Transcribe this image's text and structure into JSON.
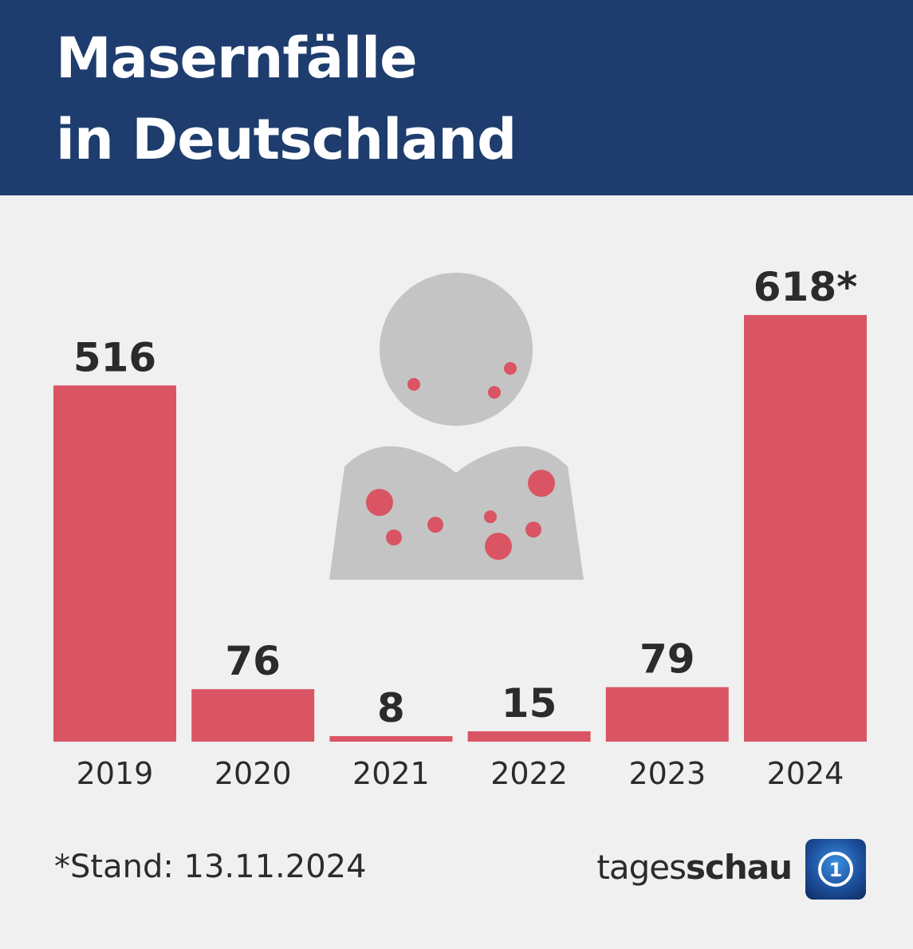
{
  "header": {
    "title_line1": "Masernfälle",
    "title_line2": "in Deutschland",
    "background": "#1e3d6e"
  },
  "chart_data": {
    "type": "bar",
    "title": "Masernfälle in Deutschland",
    "categories": [
      "2019",
      "2020",
      "2021",
      "2022",
      "2023",
      "2024"
    ],
    "values": [
      516,
      76,
      8,
      15,
      79,
      618
    ],
    "value_labels": [
      "516",
      "76",
      "8",
      "15",
      "79",
      "618*"
    ],
    "bar_color": "#d95563",
    "grid": false,
    "legend": "none"
  },
  "illustration": {
    "icon": "person-with-measles-rash-icon",
    "body_color": "#c4c4c4",
    "spot_color": "#d95563"
  },
  "footer": {
    "note": "*Stand: 13.11.2024",
    "brand_light": "tages",
    "brand_bold": "schau",
    "logo_icon": "ard-logo-icon"
  }
}
